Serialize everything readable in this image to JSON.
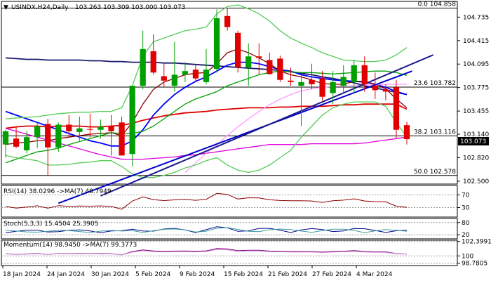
{
  "chart_data": {
    "type": "candlestick",
    "main": {
      "title": "USINDX.H24,Daily",
      "ohlc_readout": "103.263 103.309 103.000 103.073",
      "last_price": "103.073",
      "y_ticks": [
        "104.735",
        "104.415",
        "104.095",
        "103.775",
        "103.455",
        "103.140",
        "102.820",
        "102.500"
      ],
      "ylim": [
        102.48,
        104.93
      ],
      "fib_levels": [
        {
          "label": "0.0 104.858",
          "value": 104.858
        },
        {
          "label": "23.6 103.782",
          "value": 103.782
        },
        {
          "label": "38.2 103.116",
          "value": 103.116
        },
        {
          "label": "50.0 102.578",
          "value": 102.578
        }
      ],
      "candles": [
        {
          "o": 103.0,
          "h": 103.2,
          "l": 102.82,
          "c": 103.18
        },
        {
          "o": 103.08,
          "h": 103.25,
          "l": 102.95,
          "c": 102.97
        },
        {
          "o": 102.92,
          "h": 103.18,
          "l": 102.88,
          "c": 103.1
        },
        {
          "o": 103.1,
          "h": 103.3,
          "l": 102.95,
          "c": 103.25
        },
        {
          "o": 103.28,
          "h": 103.35,
          "l": 102.58,
          "c": 102.96
        },
        {
          "o": 102.96,
          "h": 103.3,
          "l": 102.9,
          "c": 103.27
        },
        {
          "o": 103.27,
          "h": 103.4,
          "l": 103.1,
          "c": 103.18
        },
        {
          "o": 103.17,
          "h": 103.38,
          "l": 103.05,
          "c": 103.22
        },
        {
          "o": 103.21,
          "h": 103.42,
          "l": 103.1,
          "c": 103.2
        },
        {
          "o": 103.2,
          "h": 103.34,
          "l": 103.08,
          "c": 103.24
        },
        {
          "o": 103.25,
          "h": 103.4,
          "l": 102.85,
          "c": 103.18
        },
        {
          "o": 103.3,
          "h": 103.38,
          "l": 102.85,
          "c": 102.85
        },
        {
          "o": 102.87,
          "h": 103.8,
          "l": 102.7,
          "c": 103.8
        },
        {
          "o": 103.8,
          "h": 104.55,
          "l": 103.75,
          "c": 104.3
        },
        {
          "o": 104.27,
          "h": 104.5,
          "l": 103.95,
          "c": 103.98
        },
        {
          "o": 103.93,
          "h": 104.1,
          "l": 103.78,
          "c": 103.87
        },
        {
          "o": 103.8,
          "h": 104.4,
          "l": 103.72,
          "c": 103.95
        },
        {
          "o": 103.95,
          "h": 104.12,
          "l": 103.85,
          "c": 104.0
        },
        {
          "o": 104.02,
          "h": 104.08,
          "l": 103.85,
          "c": 103.9
        },
        {
          "o": 103.85,
          "h": 104.3,
          "l": 103.82,
          "c": 104.02
        },
        {
          "o": 104.03,
          "h": 104.84,
          "l": 103.98,
          "c": 104.72
        },
        {
          "o": 104.75,
          "h": 104.85,
          "l": 104.55,
          "c": 104.6
        },
        {
          "o": 104.52,
          "h": 104.55,
          "l": 103.98,
          "c": 104.05
        },
        {
          "o": 104.05,
          "h": 104.38,
          "l": 103.8,
          "c": 104.2
        },
        {
          "o": 104.2,
          "h": 104.38,
          "l": 103.95,
          "c": 104.18
        },
        {
          "o": 104.15,
          "h": 104.25,
          "l": 103.95,
          "c": 103.96
        },
        {
          "o": 104.17,
          "h": 104.21,
          "l": 103.85,
          "c": 103.88
        },
        {
          "o": 103.87,
          "h": 104.05,
          "l": 103.8,
          "c": 103.85
        },
        {
          "o": 103.8,
          "h": 103.95,
          "l": 103.25,
          "c": 103.85
        },
        {
          "o": 103.88,
          "h": 104.1,
          "l": 103.75,
          "c": 103.82
        },
        {
          "o": 103.9,
          "h": 104.0,
          "l": 103.6,
          "c": 103.65
        },
        {
          "o": 103.7,
          "h": 104.0,
          "l": 103.55,
          "c": 103.85
        },
        {
          "o": 103.8,
          "h": 104.08,
          "l": 103.7,
          "c": 103.92
        },
        {
          "o": 103.85,
          "h": 104.15,
          "l": 103.7,
          "c": 104.08
        },
        {
          "o": 104.08,
          "h": 104.2,
          "l": 103.72,
          "c": 103.82
        },
        {
          "o": 103.8,
          "h": 103.98,
          "l": 103.62,
          "c": 103.74
        },
        {
          "o": 103.75,
          "h": 103.82,
          "l": 103.6,
          "c": 103.72
        },
        {
          "o": 103.78,
          "h": 103.88,
          "l": 103.08,
          "c": 103.2
        },
        {
          "o": 103.263,
          "h": 103.309,
          "l": 103.0,
          "c": 103.073
        }
      ],
      "ma_lines": [
        {
          "name": "red_ma",
          "color": "#e00000",
          "values": [
            103.22,
            103.24,
            103.25,
            103.25,
            103.24,
            103.25,
            103.25,
            103.25,
            103.24,
            103.24,
            103.25,
            103.26,
            103.29,
            103.33,
            103.36,
            103.39,
            103.41,
            103.43,
            103.44,
            103.45,
            103.47,
            103.48,
            103.49,
            103.5,
            103.5,
            103.5,
            103.51,
            103.51,
            103.52,
            103.52,
            103.52,
            103.53,
            103.54,
            103.54,
            103.55,
            103.55,
            103.55,
            103.55,
            103.48
          ]
        },
        {
          "name": "navy_ma",
          "color": "#1a1a6e",
          "values": [
            104.18,
            104.17,
            104.16,
            104.16,
            104.15,
            104.15,
            104.15,
            104.15,
            104.14,
            104.14,
            104.13,
            104.13,
            104.12,
            104.12,
            104.12,
            104.11,
            104.11,
            104.1,
            104.09,
            104.08,
            104.07,
            104.06,
            104.05,
            104.04,
            104.03,
            104.02,
            104.01,
            103.99,
            103.97,
            103.95,
            103.92,
            103.9,
            103.87,
            103.84,
            103.8,
            103.77,
            103.74,
            103.71,
            103.68
          ]
        },
        {
          "name": "blue_ma",
          "color": "#0000ff",
          "values": [
            103.45,
            103.4,
            103.35,
            103.3,
            103.25,
            103.2,
            103.15,
            103.1,
            103.05,
            103.02,
            102.98,
            102.98,
            103.05,
            103.2,
            103.4,
            103.55,
            103.68,
            103.78,
            103.86,
            103.92,
            104.0,
            104.08,
            104.12,
            104.12,
            104.1,
            104.06,
            104.02,
            104.0,
            103.95,
            103.92,
            103.9,
            103.88,
            103.87,
            103.86,
            103.85,
            103.82,
            103.78,
            103.72,
            103.68
          ]
        },
        {
          "name": "darkred_ma",
          "color": "#8b0000",
          "values": [
            103.0,
            103.02,
            103.03,
            103.05,
            103.05,
            103.08,
            103.1,
            103.12,
            103.14,
            103.15,
            103.16,
            103.12,
            103.3,
            103.55,
            103.75,
            103.85,
            103.9,
            103.95,
            103.97,
            103.98,
            104.1,
            104.25,
            104.3,
            104.25,
            104.18,
            104.1,
            104.0,
            103.95,
            103.92,
            103.88,
            103.83,
            103.82,
            103.82,
            103.86,
            103.86,
            103.82,
            103.76,
            103.62,
            103.5
          ]
        },
        {
          "name": "magenta_ma",
          "color": "#dd00dd",
          "values": [
            103.22,
            103.18,
            103.14,
            103.1,
            103.06,
            103.02,
            102.98,
            102.94,
            102.9,
            102.86,
            102.83,
            102.8,
            102.8,
            102.8,
            102.81,
            102.82,
            102.83,
            102.85,
            102.86,
            102.88,
            102.9,
            102.92,
            102.94,
            102.96,
            102.98,
            103.0,
            103.0,
            103.0,
            103.0,
            103.01,
            103.01,
            103.01,
            103.01,
            103.01,
            103.02,
            103.04,
            103.06,
            103.08,
            103.1
          ]
        },
        {
          "name": "green_ma",
          "color": "#00a000",
          "values": [
            102.75,
            102.8,
            102.85,
            102.9,
            102.92,
            102.95,
            103.0,
            103.04,
            103.08,
            103.12,
            103.16,
            103.15,
            103.15,
            103.18,
            103.25,
            103.35,
            103.45,
            103.55,
            103.62,
            103.67,
            103.72,
            103.8,
            103.85,
            103.9,
            103.95,
            103.98,
            104.0,
            103.99,
            103.98,
            103.98,
            103.97,
            103.96,
            103.97,
            103.98,
            103.99,
            104.0,
            104.0,
            103.98,
            103.94
          ]
        },
        {
          "name": "pink_ma",
          "color": "#ff99ff",
          "values": [
            null,
            null,
            null,
            null,
            null,
            null,
            null,
            null,
            null,
            null,
            null,
            null,
            null,
            null,
            null,
            null,
            null,
            102.62,
            102.75,
            102.88,
            103.0,
            103.12,
            103.24,
            103.35,
            103.45,
            103.54,
            103.62,
            103.68,
            103.73,
            103.76,
            103.78,
            103.79,
            103.8,
            103.8,
            103.81,
            103.81,
            103.82,
            103.82,
            103.82
          ]
        },
        {
          "name": "bb_upper",
          "color": "#55cc55",
          "values": [
            103.35,
            103.36,
            103.37,
            103.38,
            103.4,
            103.42,
            103.43,
            103.44,
            103.44,
            103.45,
            103.45,
            103.5,
            103.8,
            104.2,
            104.4,
            104.45,
            104.5,
            104.55,
            104.57,
            104.6,
            104.78,
            104.88,
            104.9,
            104.85,
            104.78,
            104.68,
            104.55,
            104.45,
            104.38,
            104.32,
            104.25,
            104.2,
            104.15,
            104.14,
            104.13,
            104.13,
            104.15,
            104.22,
            104.32
          ]
        },
        {
          "name": "bb_lower",
          "color": "#55cc55",
          "values": [
            102.85,
            102.82,
            102.8,
            102.78,
            102.72,
            102.72,
            102.73,
            102.75,
            102.76,
            102.78,
            102.78,
            102.7,
            102.6,
            102.55,
            102.55,
            102.58,
            102.62,
            102.68,
            102.72,
            102.78,
            102.82,
            102.72,
            102.65,
            102.62,
            102.65,
            102.72,
            102.82,
            102.92,
            103.1,
            103.25,
            103.4,
            103.5,
            103.55,
            103.58,
            103.58,
            103.58,
            103.52,
            103.3,
            103.1
          ]
        }
      ],
      "trendlines": [
        {
          "name": "uptrend",
          "color": "#0000cc",
          "points": [
            [
              5,
              102.2
            ],
            [
              38.5,
              104.0
            ]
          ]
        },
        {
          "name": "channel",
          "color": "#1a1a8c",
          "points": [
            [
              9,
              102.3
            ],
            [
              40.5,
              104.22
            ]
          ]
        }
      ]
    },
    "rsi": {
      "label": "RSI(14) 38.0296 ->MA(7) 48.7949",
      "ticks": [
        "70",
        "30"
      ],
      "ylim": [
        0,
        100
      ]
    },
    "stoch": {
      "label": "Stoch(5,3,3) 15.4504 25.3905",
      "ticks": [
        "80",
        "20"
      ],
      "ylim": [
        0,
        100
      ]
    },
    "momentum": {
      "label": "Momentum(14) 98.9450 ->MA(7) 99.3773",
      "ticks": [
        "102.3991",
        "100",
        "98.7805"
      ],
      "ylim": [
        98.4,
        102.6
      ]
    },
    "dates": [
      "18 Jan 2024",
      "24 Jan 2024",
      "30 Jan 2024",
      "5 Feb 2024",
      "9 Feb 2024",
      "15 Feb 2024",
      "21 Feb 2024",
      "27 Feb 2024",
      "4 Mar 2024"
    ]
  },
  "colors": {
    "bull": "#00a000",
    "bear": "#e00000",
    "frame": "#000000",
    "grid": "#999999",
    "price_box": "#000000"
  }
}
